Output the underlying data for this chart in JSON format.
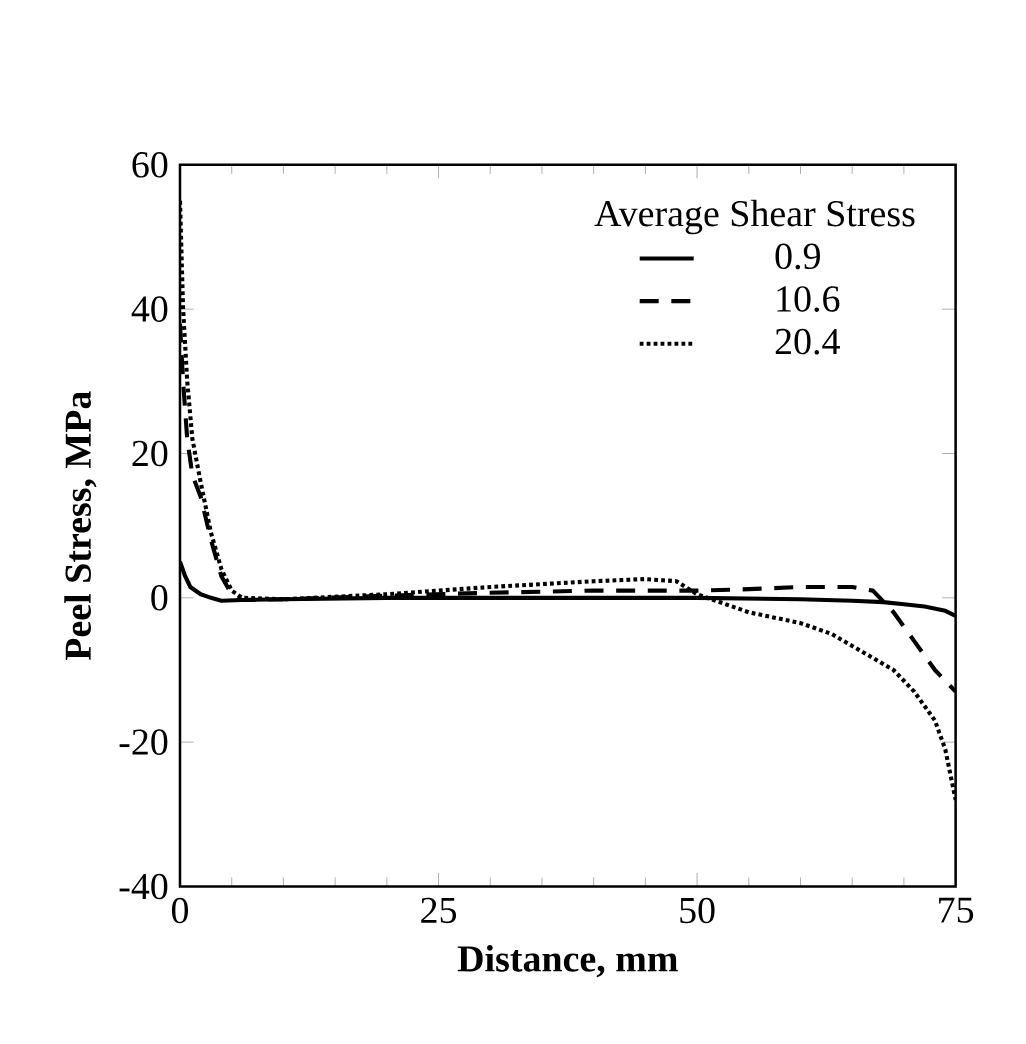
{
  "chart_data": {
    "type": "line",
    "xlabel": "Distance, mm",
    "ylabel": "Peel Stress, MPa",
    "legend_title": "Average Shear Stress",
    "legend": "top right",
    "grid": false,
    "marker": "none",
    "xlim": [
      0,
      75
    ],
    "ylim": [
      -40,
      60
    ],
    "xticks": [
      0,
      25,
      50,
      75
    ],
    "yticks": [
      -40,
      -20,
      0,
      20,
      40,
      60
    ],
    "series": [
      {
        "name": "0.9",
        "color": "#000000",
        "line_style": "solid",
        "x": [
          0,
          0.5,
          1,
          2,
          3,
          4,
          6,
          10,
          20,
          30,
          40,
          50,
          60,
          65,
          68,
          70,
          72,
          74,
          75
        ],
        "values": [
          5,
          3,
          1.5,
          0.5,
          0,
          -0.4,
          -0.3,
          -0.2,
          0,
          0,
          0,
          0,
          -0.2,
          -0.4,
          -0.6,
          -0.9,
          -1.2,
          -1.8,
          -2.5
        ]
      },
      {
        "name": "10.6",
        "color": "#000000",
        "line_style": "dashed",
        "x": [
          0,
          0.3,
          0.7,
          1.2,
          2,
          3,
          4,
          5,
          6,
          10,
          20,
          30,
          40,
          50,
          55,
          60,
          65,
          67,
          69,
          71,
          73,
          75
        ],
        "values": [
          38,
          30,
          22,
          17,
          14,
          8,
          3,
          0.5,
          -0.3,
          -0.2,
          0.3,
          0.7,
          1,
          1,
          1.2,
          1.5,
          1.5,
          1,
          -2,
          -6,
          -10,
          -13
        ]
      },
      {
        "name": "20.4",
        "color": "#000000",
        "line_style": "dotted",
        "x": [
          0,
          0.3,
          0.7,
          1.2,
          2,
          3,
          4,
          5,
          6,
          10,
          20,
          30,
          40,
          45,
          48,
          50,
          55,
          60,
          63,
          66,
          69,
          71,
          73,
          74,
          75
        ],
        "values": [
          55,
          40,
          30,
          22,
          16,
          9,
          4,
          1,
          0,
          -0.2,
          0.5,
          1.5,
          2.3,
          2.6,
          2.3,
          0.5,
          -2,
          -3.5,
          -5,
          -7.5,
          -10,
          -13,
          -17,
          -21,
          -28
        ]
      }
    ]
  }
}
